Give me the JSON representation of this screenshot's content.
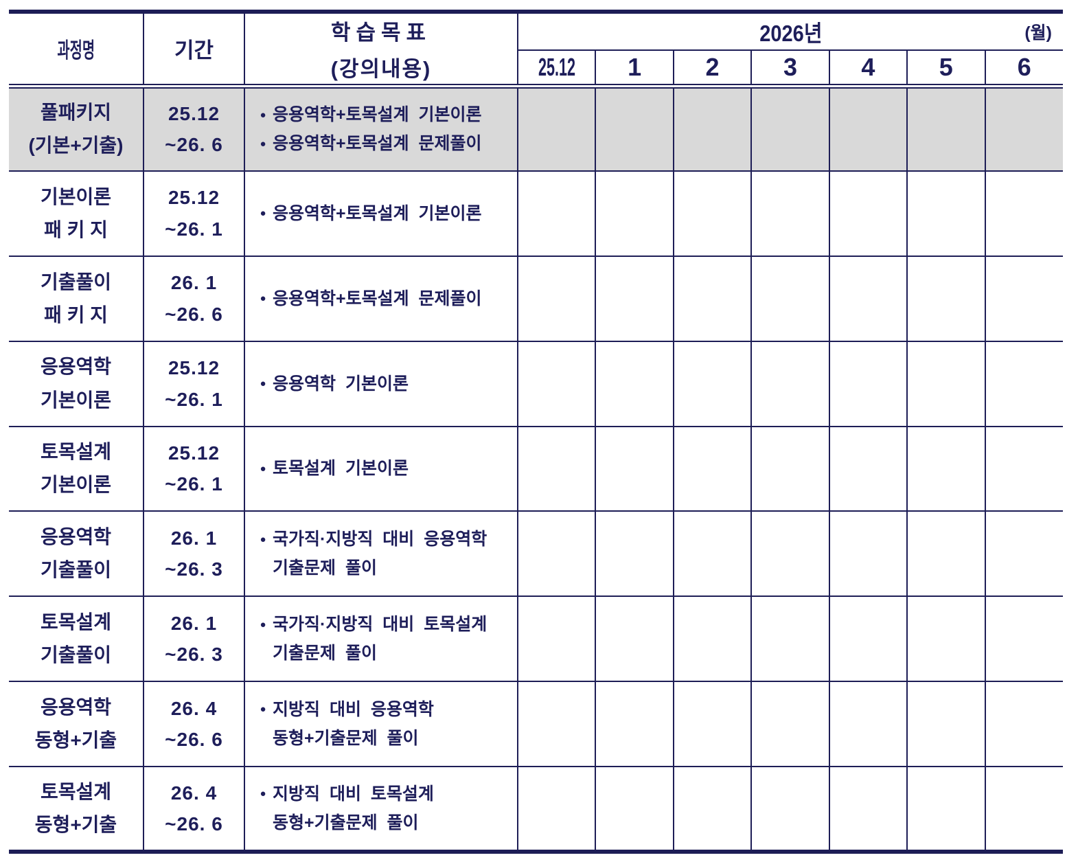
{
  "colors": {
    "ink": "#1e1e5a",
    "line": "#1d1d56",
    "highlight": "#d9d9d9"
  },
  "bullet_glyph": "●",
  "header": {
    "course": "과정명",
    "period": "기간",
    "goal_line1": "학습목표",
    "goal_line2": "(강의내용)",
    "year": "2026년",
    "unit": "(월)",
    "months": [
      "25.12",
      "1",
      "2",
      "3",
      "4",
      "5",
      "6"
    ]
  },
  "rows": [
    {
      "course": [
        "풀패키지",
        "(기본+기출)"
      ],
      "period": [
        "25.12",
        "~26. 6"
      ],
      "goals": [
        {
          "b": 1,
          "t": "응용역학+토목설계 기본이론"
        },
        {
          "b": 1,
          "t": "응용역학+토목설계 문제풀이"
        }
      ],
      "highlight": true
    },
    {
      "course": [
        "기본이론",
        "패 키 지"
      ],
      "period": [
        "25.12",
        "~26. 1"
      ],
      "goals": [
        {
          "b": 1,
          "t": "응용역학+토목설계 기본이론"
        }
      ],
      "highlight": false
    },
    {
      "course": [
        "기출풀이",
        "패 키 지"
      ],
      "period": [
        "26. 1",
        "~26. 6"
      ],
      "goals": [
        {
          "b": 1,
          "t": "응용역학+토목설계 문제풀이"
        }
      ],
      "highlight": false
    },
    {
      "course": [
        "응용역학",
        "기본이론"
      ],
      "period": [
        "25.12",
        "~26. 1"
      ],
      "goals": [
        {
          "b": 1,
          "t": "응용역학 기본이론"
        }
      ],
      "highlight": false
    },
    {
      "course": [
        "토목설계",
        "기본이론"
      ],
      "period": [
        "25.12",
        "~26. 1"
      ],
      "goals": [
        {
          "b": 1,
          "t": "토목설계 기본이론"
        }
      ],
      "highlight": false
    },
    {
      "course": [
        "응용역학",
        "기출풀이"
      ],
      "period": [
        "26. 1",
        "~26. 3"
      ],
      "goals": [
        {
          "b": 1,
          "t": "국가직·지방직 대비 응용역학"
        },
        {
          "b": 0,
          "t": "기출문제 풀이"
        }
      ],
      "highlight": false
    },
    {
      "course": [
        "토목설계",
        "기출풀이"
      ],
      "period": [
        "26. 1",
        "~26. 3"
      ],
      "goals": [
        {
          "b": 1,
          "t": "국가직·지방직 대비 토목설계"
        },
        {
          "b": 0,
          "t": "기출문제 풀이"
        }
      ],
      "highlight": false
    },
    {
      "course": [
        "응용역학",
        "동형+기출"
      ],
      "period": [
        "26. 4",
        "~26. 6"
      ],
      "goals": [
        {
          "b": 1,
          "t": "지방직 대비 응용역학"
        },
        {
          "b": 0,
          "t": "동형+기출문제 풀이"
        }
      ],
      "highlight": false
    },
    {
      "course": [
        "토목설계",
        "동형+기출"
      ],
      "period": [
        "26. 4",
        "~26. 6"
      ],
      "goals": [
        {
          "b": 1,
          "t": "지방직 대비 토목설계"
        },
        {
          "b": 0,
          "t": "동형+기출문제 풀이"
        }
      ],
      "highlight": false
    }
  ]
}
